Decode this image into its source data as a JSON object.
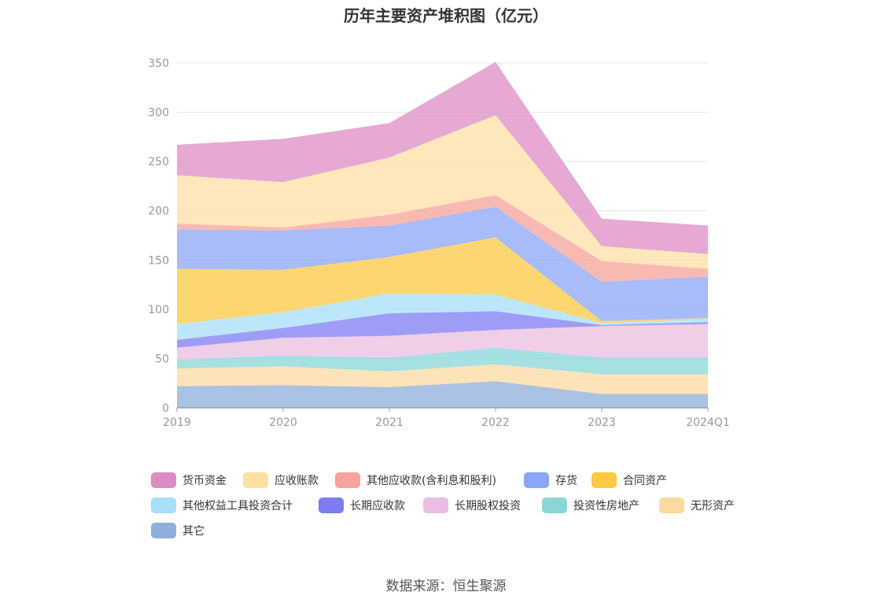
{
  "chart_data": {
    "type": "area",
    "stacked": true,
    "title": "历年主要资产堆积图（亿元）",
    "source": "数据来源：恒生聚源",
    "categories": [
      "2019",
      "2020",
      "2021",
      "2022",
      "2023",
      "2024Q1"
    ],
    "ylim": [
      0,
      350
    ],
    "yticks": [
      0,
      50,
      100,
      150,
      200,
      250,
      300,
      350
    ],
    "grid": true,
    "legend_position": "bottom",
    "series": [
      {
        "name": "其它",
        "color": "#8eaedb",
        "values": [
          22,
          23,
          21,
          27,
          14,
          14
        ]
      },
      {
        "name": "无形资产",
        "color": "#fcd9a0",
        "values": [
          18,
          19,
          16,
          17,
          20,
          20
        ]
      },
      {
        "name": "投资性房地产",
        "color": "#89d6d6",
        "values": [
          9,
          11,
          14,
          17,
          17,
          17
        ]
      },
      {
        "name": "长期股权投资",
        "color": "#ecbde0",
        "values": [
          12,
          18,
          22,
          18,
          32,
          34
        ]
      },
      {
        "name": "长期应收款",
        "color": "#7d7cf2",
        "values": [
          8,
          10,
          23,
          19,
          1,
          2
        ]
      },
      {
        "name": "其他权益工具投资合计",
        "color": "#a6dff8",
        "values": [
          16,
          16,
          20,
          17,
          2,
          3
        ]
      },
      {
        "name": "合同资产",
        "color": "#fbc942",
        "values": [
          56,
          43,
          37,
          58,
          2,
          1
        ]
      },
      {
        "name": "存货",
        "color": "#89a6f7",
        "values": [
          40,
          40,
          32,
          31,
          40,
          42
        ]
      },
      {
        "name": "其他应收款(含利息和股利)",
        "color": "#f7a29a",
        "values": [
          6,
          3,
          11,
          12,
          21,
          8
        ]
      },
      {
        "name": "应收账款",
        "color": "#fddfa4",
        "values": [
          49,
          46,
          58,
          81,
          15,
          15
        ]
      },
      {
        "name": "货币资金",
        "color": "#dc8cc4",
        "values": [
          31,
          44,
          35,
          54,
          28,
          29
        ]
      }
    ]
  }
}
